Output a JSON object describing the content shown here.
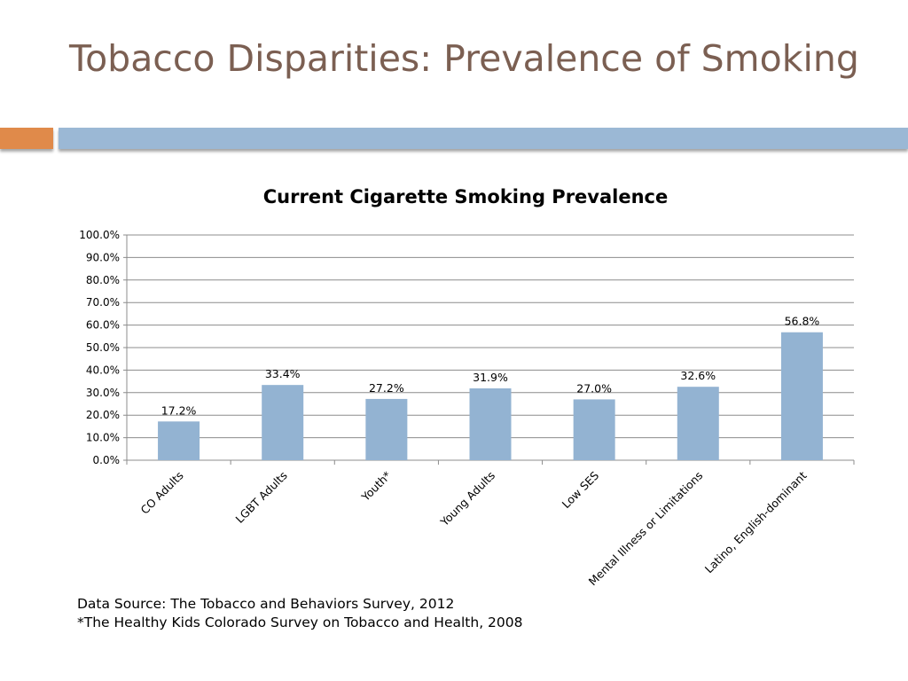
{
  "slide": {
    "title": "Tobacco Disparities: Prevalence of Smoking"
  },
  "colors": {
    "title": "#7b5f52",
    "accent_orange": "#e08a4a",
    "accent_blue": "#9bb8d5",
    "bar": "#93b3d2",
    "gridline": "#8c8c8c"
  },
  "chart_data": {
    "type": "bar",
    "title": "Current Cigarette Smoking Prevalence",
    "categories": [
      "CO Adults",
      "LGBT Adults",
      "Youth*",
      "Young Adults",
      "Low SES",
      "Mental Illness or Limitations",
      "Latino, English-dominant"
    ],
    "values": [
      17.2,
      33.4,
      27.2,
      31.9,
      27.0,
      32.6,
      56.8
    ],
    "data_labels": [
      "17.2%",
      "33.4%",
      "27.2%",
      "31.9%",
      "27.0%",
      "32.6%",
      "56.8%"
    ],
    "y_ticks": [
      "0.0%",
      "10.0%",
      "20.0%",
      "30.0%",
      "40.0%",
      "50.0%",
      "60.0%",
      "70.0%",
      "80.0%",
      "90.0%",
      "100.0%"
    ],
    "ylim": [
      0,
      100
    ],
    "xlabel": "",
    "ylabel": "",
    "grid": true,
    "legend": "none"
  },
  "footnotes": {
    "source": "Data Source:  The Tobacco and Behaviors Survey, 2012",
    "youth_source": "*The Healthy Kids Colorado Survey on Tobacco and Health, 2008"
  }
}
